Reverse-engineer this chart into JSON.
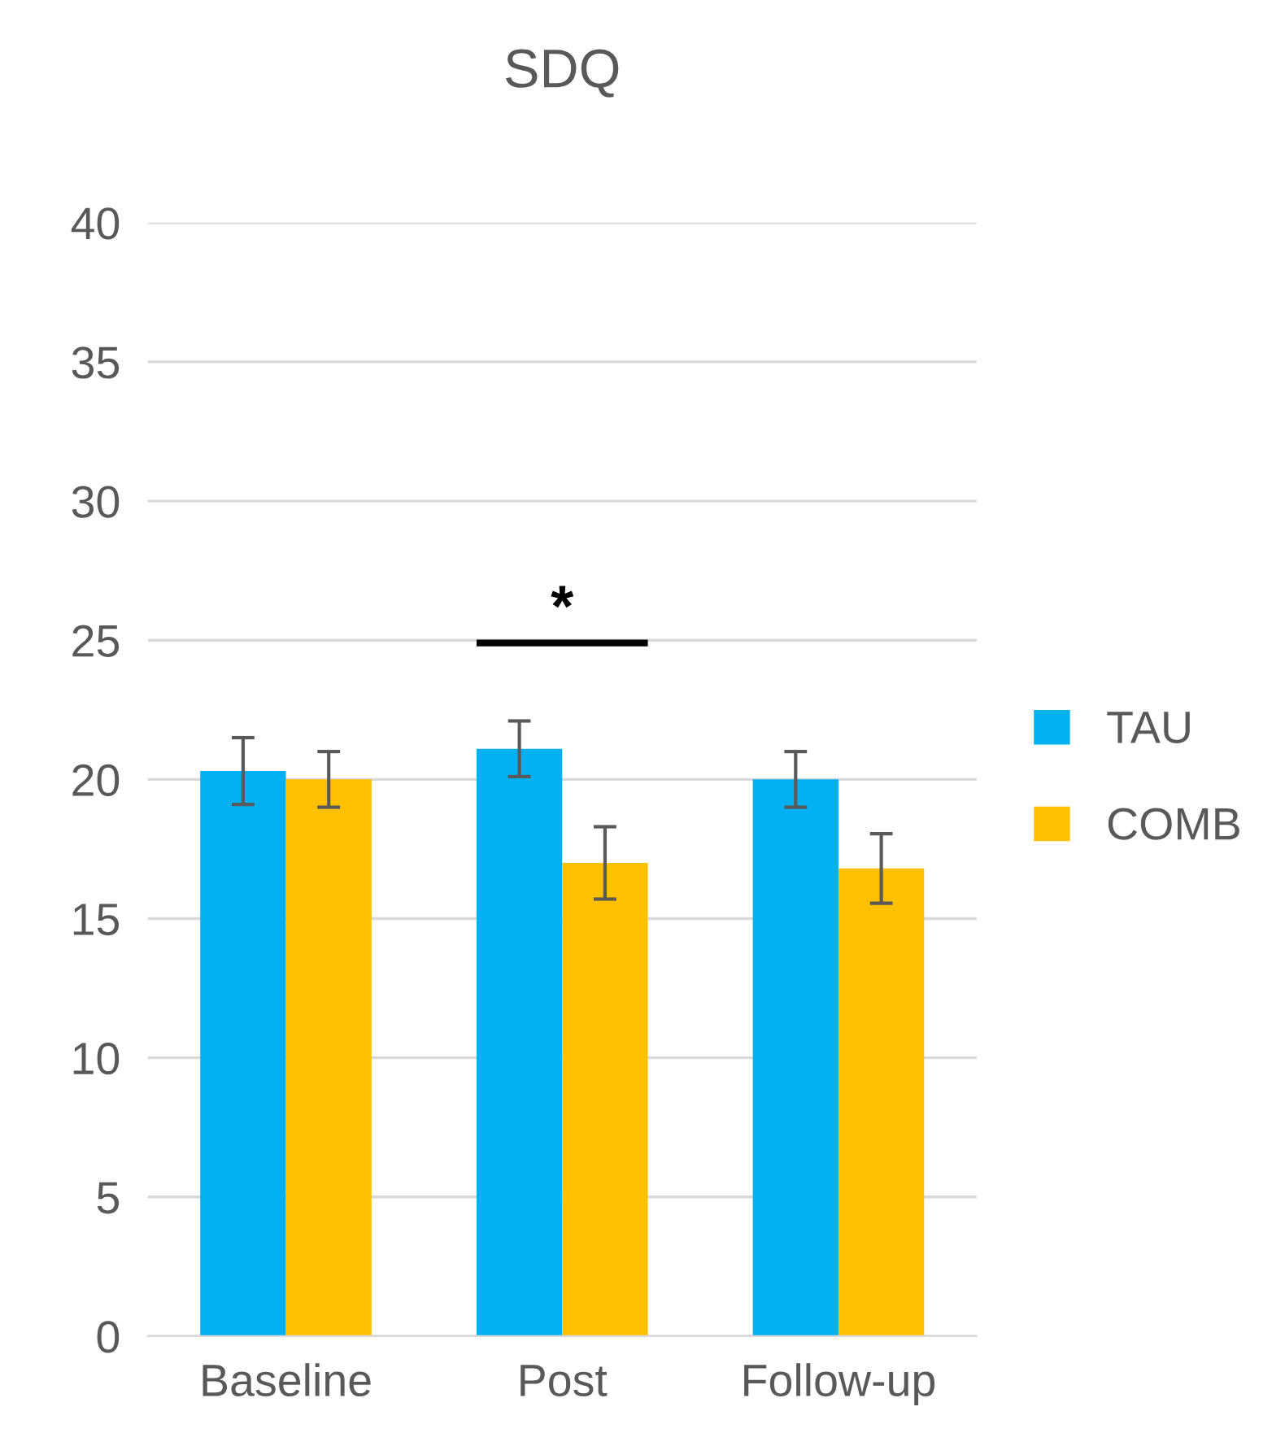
{
  "chart_data": {
    "type": "bar",
    "title": "SDQ",
    "categories": [
      "Baseline",
      "Post",
      "Follow-up"
    ],
    "series": [
      {
        "name": "TAU",
        "color": "#00b0f0",
        "values": [
          20.3,
          21.1,
          20.0
        ],
        "errors": [
          1.2,
          1.0,
          1.0
        ]
      },
      {
        "name": "COMB",
        "color": "#ffc000",
        "values": [
          20.0,
          17.0,
          16.8
        ],
        "errors": [
          1.0,
          1.3,
          1.25
        ]
      }
    ],
    "ylim": [
      0,
      40
    ],
    "yticks": [
      0,
      5,
      10,
      15,
      20,
      25,
      30,
      35,
      40
    ],
    "grid": "y",
    "legend": "right",
    "annotations": [
      "*"
    ]
  }
}
